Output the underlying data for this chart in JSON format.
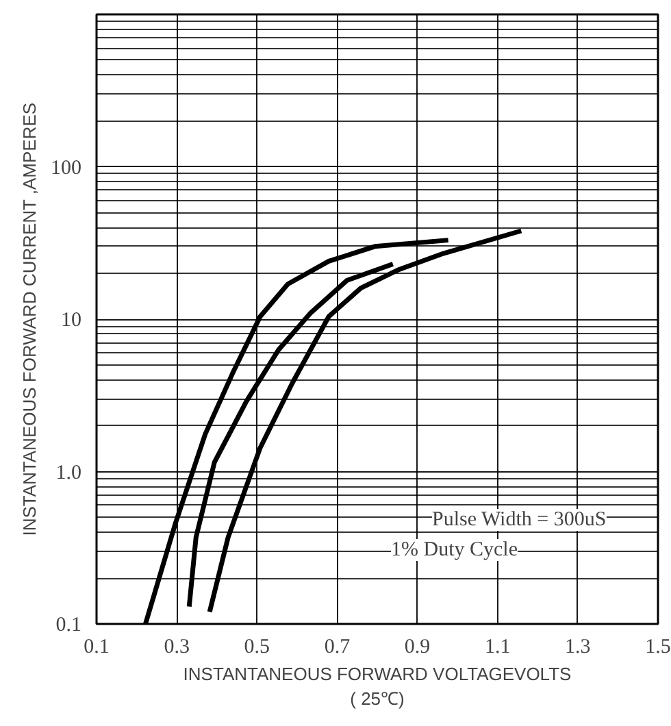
{
  "chart_data": {
    "type": "line",
    "xlabel": "INSTANTANEOUS FORWARD VOLTAGEVOLTS\n( 25℃)",
    "ylabel": "INSTANTANEOUS FORWARD CURRENT ,AMPERES",
    "log": "y",
    "grid": true,
    "line_style": "solid",
    "xlim": [
      0.1,
      1.5
    ],
    "xticks": [
      0.1,
      0.3,
      0.5,
      0.7,
      0.9,
      1.1,
      1.3,
      1.5
    ],
    "ylim": [
      0.1,
      1000
    ],
    "yticks": [
      {
        "value": 0.1,
        "label": "0.1"
      },
      {
        "value": 1,
        "label": "1.0"
      },
      10,
      100,
      {
        "value": 1000,
        "label": null
      }
    ],
    "annotations": [
      "Pulse Width = 300uS",
      "1% Duty Cycle"
    ],
    "series": [
      {
        "color": "#000000",
        "x": [
          0.222,
          0.297,
          0.371,
          0.439,
          0.508,
          0.577,
          0.679,
          0.794,
          0.977
        ],
        "values": [
          0.1,
          0.46,
          1.76,
          4.4,
          10.4,
          17,
          24,
          30,
          33
        ]
      },
      {
        "color": "#000000",
        "x": [
          0.331,
          0.348,
          0.394,
          0.474,
          0.554,
          0.634,
          0.725,
          0.839
        ],
        "values": [
          0.13,
          0.37,
          1.15,
          2.9,
          6.3,
          11,
          18,
          23
        ]
      },
      {
        "color": "#000000",
        "x": [
          0.382,
          0.428,
          0.508,
          0.588,
          0.679,
          0.759,
          0.851,
          0.965,
          1.159
        ],
        "values": [
          0.12,
          0.37,
          1.43,
          3.8,
          10.4,
          16,
          21,
          27,
          38
        ]
      }
    ]
  }
}
